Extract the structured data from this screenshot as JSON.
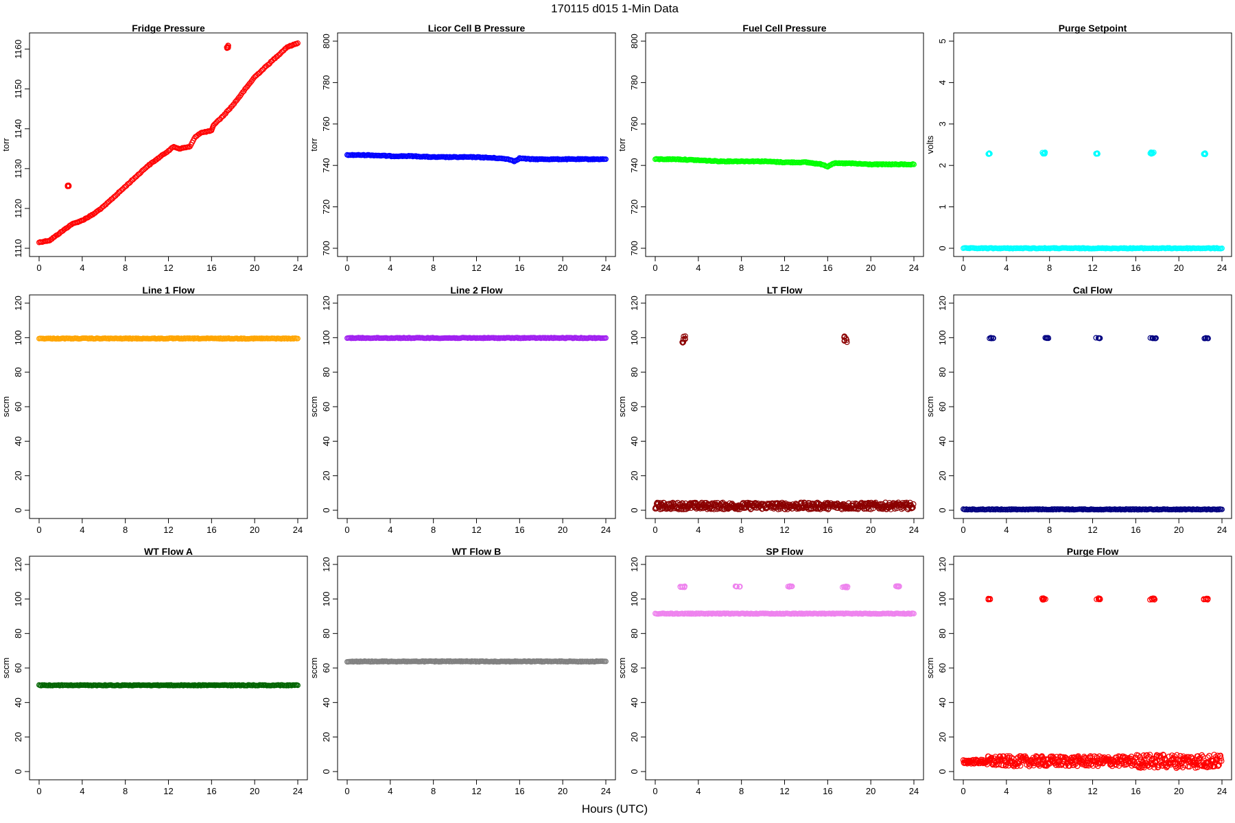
{
  "figure": {
    "title": "170115   d015   1-Min Data",
    "xlabel": "Hours (UTC)"
  },
  "chart_data": [
    {
      "type": "scatter",
      "title": "Fridge Pressure",
      "ylabel": "torr",
      "color": "#ff0000",
      "xlim": [
        0,
        24
      ],
      "ylim": [
        1110,
        1162
      ],
      "xticks": [
        0,
        4,
        8,
        12,
        16,
        20,
        24
      ],
      "yticks": [
        1110,
        1120,
        1130,
        1140,
        1150,
        1160
      ],
      "series": [
        {
          "kind": "line",
          "x": [
            0,
            1,
            2,
            3,
            4,
            5,
            6,
            7,
            8,
            9,
            10,
            11,
            12,
            12.5,
            13,
            14,
            14.5,
            15,
            16,
            16.2,
            17,
            18,
            19,
            20,
            21,
            22,
            23,
            24
          ],
          "y": [
            1111.5,
            1112,
            1114,
            1116,
            1117,
            1118.5,
            1120.5,
            1123,
            1125.5,
            1128,
            1130.5,
            1132.5,
            1134.5,
            1135.5,
            1135,
            1135.5,
            1138,
            1139,
            1139.5,
            1141,
            1143,
            1146,
            1149.5,
            1153,
            1155.5,
            1158,
            1160.5,
            1161.5
          ]
        },
        {
          "kind": "cluster",
          "x": [
            2.6,
            2.8
          ],
          "y": [
            1125.5,
            1125.8
          ]
        },
        {
          "kind": "cluster",
          "x": [
            17.4,
            17.6
          ],
          "y": [
            1160.2,
            1161
          ]
        }
      ]
    },
    {
      "type": "scatter",
      "title": "Licor Cell B Pressure",
      "ylabel": "torr",
      "color": "#0000ff",
      "xlim": [
        0,
        24
      ],
      "ylim": [
        700,
        800
      ],
      "xticks": [
        0,
        4,
        8,
        12,
        16,
        20,
        24
      ],
      "yticks": [
        700,
        720,
        740,
        760,
        780,
        800
      ],
      "series": [
        {
          "kind": "line",
          "x": [
            0,
            2,
            4,
            6,
            8,
            10,
            12,
            14,
            15,
            15.5,
            16,
            17,
            20,
            24
          ],
          "y": [
            745,
            745,
            744.5,
            744.5,
            744,
            744,
            744,
            743.5,
            743,
            742,
            743.5,
            743,
            743,
            743
          ]
        }
      ]
    },
    {
      "type": "scatter",
      "title": "Fuel Cell Pressure",
      "ylabel": "torr",
      "color": "#00ff00",
      "xlim": [
        0,
        24
      ],
      "ylim": [
        700,
        800
      ],
      "xticks": [
        0,
        4,
        8,
        12,
        16,
        20,
        24
      ],
      "yticks": [
        700,
        720,
        740,
        760,
        780,
        800
      ],
      "series": [
        {
          "kind": "line",
          "x": [
            0,
            2,
            4,
            6,
            8,
            10,
            12,
            14,
            15.5,
            16,
            16.5,
            18,
            20,
            24
          ],
          "y": [
            743,
            743,
            742.5,
            742,
            742,
            742,
            741.5,
            741.5,
            740.5,
            739.5,
            741,
            741,
            740.5,
            740.5
          ]
        }
      ]
    },
    {
      "type": "scatter",
      "title": "Purge Setpoint",
      "ylabel": "volts",
      "color": "#00ffff",
      "xlim": [
        0,
        24
      ],
      "ylim": [
        0,
        5
      ],
      "xticks": [
        0,
        4,
        8,
        12,
        16,
        20,
        24
      ],
      "yticks": [
        0,
        1,
        2,
        3,
        4,
        5
      ],
      "series": [
        {
          "kind": "line",
          "x": [
            0,
            24
          ],
          "y": [
            0,
            0
          ]
        },
        {
          "kind": "cluster",
          "x": [
            2.3,
            2.5
          ],
          "y": [
            2.27,
            2.3
          ]
        },
        {
          "kind": "cluster",
          "x": [
            7.3,
            7.6
          ],
          "y": [
            2.28,
            2.33
          ]
        },
        {
          "kind": "cluster",
          "x": [
            12.3,
            12.5
          ],
          "y": [
            2.27,
            2.3
          ]
        },
        {
          "kind": "cluster",
          "x": [
            17.3,
            17.7
          ],
          "y": [
            2.27,
            2.32
          ]
        },
        {
          "kind": "cluster",
          "x": [
            22.3,
            22.5
          ],
          "y": [
            2.25,
            2.3
          ]
        }
      ]
    },
    {
      "type": "scatter",
      "title": "Line 1 Flow",
      "ylabel": "sccm",
      "color": "#ffa500",
      "xlim": [
        0,
        24
      ],
      "ylim": [
        0,
        120
      ],
      "xticks": [
        0,
        4,
        8,
        12,
        16,
        20,
        24
      ],
      "yticks": [
        0,
        20,
        40,
        60,
        80,
        100,
        120
      ],
      "series": [
        {
          "kind": "line",
          "x": [
            0,
            24
          ],
          "y": [
            99.5,
            99.5
          ]
        }
      ]
    },
    {
      "type": "scatter",
      "title": "Line 2 Flow",
      "ylabel": "sccm",
      "color": "#a020f0",
      "xlim": [
        0,
        24
      ],
      "ylim": [
        0,
        120
      ],
      "xticks": [
        0,
        4,
        8,
        12,
        16,
        20,
        24
      ],
      "yticks": [
        0,
        20,
        40,
        60,
        80,
        100,
        120
      ],
      "series": [
        {
          "kind": "line",
          "x": [
            0,
            24
          ],
          "y": [
            99.8,
            99.8
          ]
        }
      ]
    },
    {
      "type": "scatter",
      "title": "LT Flow",
      "ylabel": "sccm",
      "color": "#8b0000",
      "xlim": [
        0,
        24
      ],
      "ylim": [
        0,
        120
      ],
      "xticks": [
        0,
        4,
        8,
        12,
        16,
        20,
        24
      ],
      "yticks": [
        0,
        20,
        40,
        60,
        80,
        100,
        120
      ],
      "series": [
        {
          "kind": "band",
          "x": [
            0,
            24
          ],
          "ylow": 0.5,
          "yhigh": 4.5
        },
        {
          "kind": "cluster",
          "x": [
            2.5,
            2.8
          ],
          "y": [
            97,
            101.5
          ]
        },
        {
          "kind": "cluster",
          "x": [
            17.5,
            17.8
          ],
          "y": [
            97,
            101.5
          ]
        }
      ]
    },
    {
      "type": "scatter",
      "title": "Cal Flow",
      "ylabel": "sccm",
      "color": "#000080",
      "xlim": [
        0,
        24
      ],
      "ylim": [
        0,
        120
      ],
      "xticks": [
        0,
        4,
        8,
        12,
        16,
        20,
        24
      ],
      "yticks": [
        0,
        20,
        40,
        60,
        80,
        100,
        120
      ],
      "series": [
        {
          "kind": "line",
          "x": [
            0,
            24
          ],
          "y": [
            0.5,
            0.5
          ]
        },
        {
          "kind": "cluster",
          "x": [
            2.3,
            2.8
          ],
          "y": [
            99.5,
            100
          ]
        },
        {
          "kind": "cluster",
          "x": [
            7.3,
            7.9
          ],
          "y": [
            99.5,
            100
          ]
        },
        {
          "kind": "cluster",
          "x": [
            12.3,
            12.7
          ],
          "y": [
            99.5,
            100
          ]
        },
        {
          "kind": "cluster",
          "x": [
            17.3,
            17.9
          ],
          "y": [
            99.5,
            100
          ]
        },
        {
          "kind": "cluster",
          "x": [
            22.3,
            22.8
          ],
          "y": [
            99.5,
            100
          ]
        }
      ]
    },
    {
      "type": "scatter",
      "title": "WT Flow A",
      "ylabel": "sccm",
      "color": "#006400",
      "xlim": [
        0,
        24
      ],
      "ylim": [
        0,
        120
      ],
      "xticks": [
        0,
        4,
        8,
        12,
        16,
        20,
        24
      ],
      "yticks": [
        0,
        20,
        40,
        60,
        80,
        100,
        120
      ],
      "series": [
        {
          "kind": "line",
          "x": [
            0,
            24
          ],
          "y": [
            50,
            50
          ]
        }
      ]
    },
    {
      "type": "scatter",
      "title": "WT Flow B",
      "ylabel": "sccm",
      "color": "#808080",
      "xlim": [
        0,
        24
      ],
      "ylim": [
        0,
        120
      ],
      "xticks": [
        0,
        4,
        8,
        12,
        16,
        20,
        24
      ],
      "yticks": [
        0,
        20,
        40,
        60,
        80,
        100,
        120
      ],
      "series": [
        {
          "kind": "line",
          "x": [
            0,
            24
          ],
          "y": [
            63.8,
            63.8
          ]
        }
      ]
    },
    {
      "type": "scatter",
      "title": "SP Flow",
      "ylabel": "sccm",
      "color": "#ee82ee",
      "xlim": [
        0,
        24
      ],
      "ylim": [
        0,
        120
      ],
      "xticks": [
        0,
        4,
        8,
        12,
        16,
        20,
        24
      ],
      "yticks": [
        0,
        20,
        40,
        60,
        80,
        100,
        120
      ],
      "series": [
        {
          "kind": "line",
          "x": [
            0,
            24
          ],
          "y": [
            91.5,
            91.5
          ]
        },
        {
          "kind": "cluster",
          "x": [
            2.3,
            2.8
          ],
          "y": [
            106.5,
            107.5
          ]
        },
        {
          "kind": "cluster",
          "x": [
            7.3,
            7.9
          ],
          "y": [
            107,
            107.5
          ]
        },
        {
          "kind": "cluster",
          "x": [
            12.3,
            12.7
          ],
          "y": [
            107,
            107.5
          ]
        },
        {
          "kind": "cluster",
          "x": [
            17.3,
            17.9
          ],
          "y": [
            106.5,
            107.5
          ]
        },
        {
          "kind": "cluster",
          "x": [
            22.3,
            22.7
          ],
          "y": [
            107,
            107.5
          ]
        }
      ]
    },
    {
      "type": "scatter",
      "title": "Purge Flow",
      "ylabel": "sccm",
      "color": "#ff0000",
      "xlim": [
        0,
        24
      ],
      "ylim": [
        0,
        120
      ],
      "xticks": [
        0,
        4,
        8,
        12,
        16,
        20,
        24
      ],
      "yticks": [
        0,
        20,
        40,
        60,
        80,
        100,
        120
      ],
      "series": [
        {
          "kind": "band",
          "x": [
            0,
            2.2
          ],
          "ylow": 4.5,
          "yhigh": 7
        },
        {
          "kind": "band",
          "x": [
            2.2,
            16
          ],
          "ylow": 3,
          "yhigh": 9
        },
        {
          "kind": "band",
          "x": [
            16,
            24
          ],
          "ylow": 2,
          "yhigh": 10
        },
        {
          "kind": "cluster",
          "x": [
            2.3,
            2.6
          ],
          "y": [
            99.5,
            100.5
          ]
        },
        {
          "kind": "cluster",
          "x": [
            7.3,
            7.8
          ],
          "y": [
            99.5,
            100.5
          ]
        },
        {
          "kind": "cluster",
          "x": [
            12.3,
            12.7
          ],
          "y": [
            99.5,
            100.5
          ]
        },
        {
          "kind": "cluster",
          "x": [
            17.3,
            17.8
          ],
          "y": [
            99.5,
            100.5
          ]
        },
        {
          "kind": "cluster",
          "x": [
            22.3,
            22.7
          ],
          "y": [
            99.5,
            100.5
          ]
        }
      ]
    }
  ]
}
